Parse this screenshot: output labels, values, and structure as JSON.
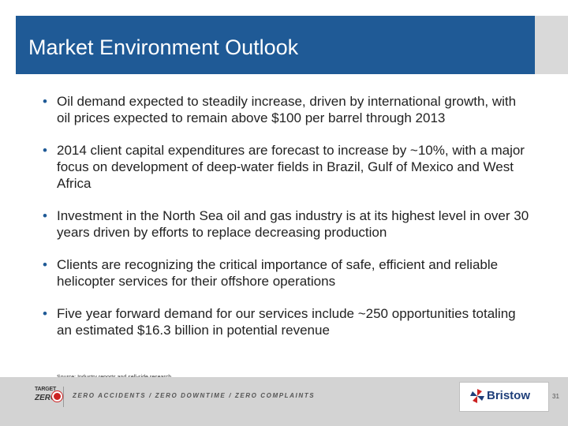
{
  "slide": {
    "title": "Market Environment Outlook",
    "bullets": [
      "Oil demand expected to steadily increase, driven by international growth, with oil prices expected to remain above $100 per barrel through 2013",
      "2014 client capital expenditures are forecast to increase by ~10%, with a major focus on development of deep-water fields in Brazil, Gulf of Mexico and West Africa",
      "Investment in the North Sea oil and gas industry is at its highest level in over 30 years driven by efforts to replace decreasing production",
      "Clients are recognizing the critical importance of safe, efficient and reliable helicopter services for their offshore operations",
      "Five year forward demand for our services include ~250 opportunities totaling an estimated $16.3 billion in potential revenue"
    ],
    "bullet_marker": "•",
    "source": "Source: Industry reports and sell-side research",
    "page_number": "31"
  },
  "footer": {
    "target_zero_top": "TARGET",
    "target_zero_bottom": "ZERO",
    "tagline": "ZERO ACCIDENTS / ZERO DOWNTIME / ZERO COMPLAINTS",
    "brand": "Bristow",
    "brand_icon": "bristow-pinwheel-icon",
    "target_icon": "target-icon"
  },
  "colors": {
    "title_bar": "#1f5a96",
    "footer_band": "#d3d3d3",
    "brand_blue": "#1f3f7a",
    "brand_red": "#cc2222"
  }
}
